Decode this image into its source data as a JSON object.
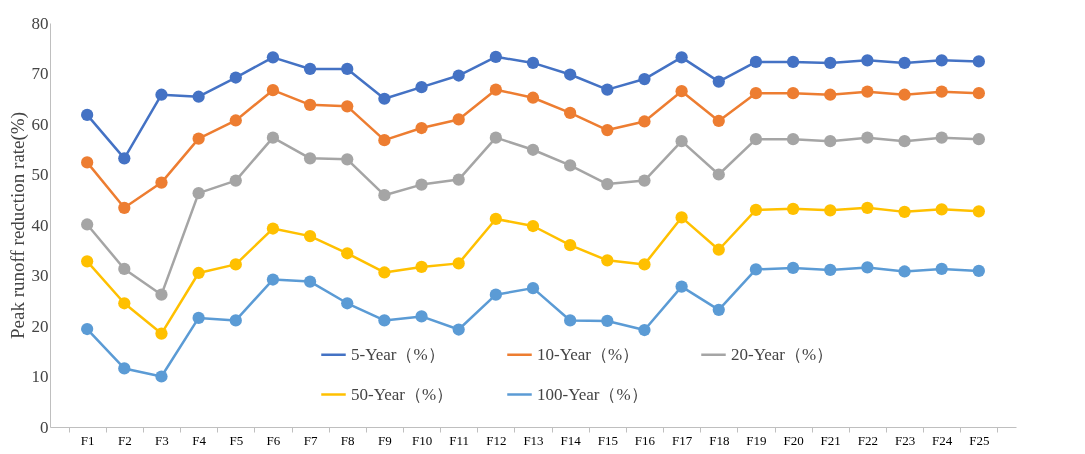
{
  "chart_data": {
    "type": "line",
    "ylabel": "Peak runoff reduction rate(%)",
    "categories": [
      "F1",
      "F2",
      "F3",
      "F4",
      "F5",
      "F6",
      "F7",
      "F8",
      "F9",
      "F10",
      "F11",
      "F12",
      "F13",
      "F14",
      "F15",
      "F16",
      "F17",
      "F18",
      "F19",
      "F20",
      "F21",
      "F22",
      "F23",
      "F24",
      "F25"
    ],
    "ylim": [
      0,
      80
    ],
    "yticks": [
      0,
      10,
      20,
      30,
      40,
      50,
      60,
      70,
      80
    ],
    "grid": false,
    "legend": "bottom",
    "marker": "circle",
    "line_style": "solid",
    "series": [
      {
        "name": "5-Year（%）",
        "color": "#4472c4",
        "values": [
          61.8,
          53.2,
          65.8,
          65.4,
          69.2,
          73.2,
          70.9,
          70.9,
          65.0,
          67.3,
          69.6,
          73.3,
          72.1,
          69.8,
          66.8,
          68.9,
          73.2,
          68.4,
          72.3,
          72.3,
          72.1,
          72.6,
          72.1,
          72.6,
          72.4
        ]
      },
      {
        "name": "10-Year（%）",
        "color": "#ed7d31",
        "values": [
          52.4,
          43.4,
          48.4,
          57.1,
          60.7,
          66.7,
          63.8,
          63.5,
          56.8,
          59.2,
          60.9,
          66.8,
          65.2,
          62.2,
          58.8,
          60.5,
          66.5,
          60.6,
          66.1,
          66.1,
          65.8,
          66.4,
          65.8,
          66.4,
          66.1
        ]
      },
      {
        "name": "20-Year（%）",
        "color": "#a5a5a5",
        "values": [
          40.1,
          31.3,
          26.2,
          46.3,
          48.8,
          57.3,
          53.2,
          53.0,
          45.9,
          48.0,
          49.0,
          57.3,
          54.9,
          51.8,
          48.1,
          48.8,
          56.6,
          50.0,
          57.0,
          57.0,
          56.6,
          57.3,
          56.6,
          57.3,
          57.0
        ]
      },
      {
        "name": "50-Year（%）",
        "color": "#ffc000",
        "values": [
          32.8,
          24.5,
          18.5,
          30.5,
          32.2,
          39.3,
          37.8,
          34.4,
          30.6,
          31.7,
          32.4,
          41.2,
          39.8,
          36.0,
          33.0,
          32.2,
          41.5,
          35.1,
          43.0,
          43.2,
          42.9,
          43.4,
          42.6,
          43.1,
          42.7
        ]
      },
      {
        "name": "100-Year（%）",
        "color": "#5b9bd5",
        "values": [
          19.4,
          11.6,
          10.0,
          21.6,
          21.1,
          29.2,
          28.8,
          24.5,
          21.1,
          21.9,
          19.3,
          26.2,
          27.5,
          21.1,
          21.0,
          19.2,
          27.8,
          23.2,
          31.2,
          31.5,
          31.1,
          31.6,
          30.8,
          31.3,
          30.9
        ]
      }
    ]
  }
}
